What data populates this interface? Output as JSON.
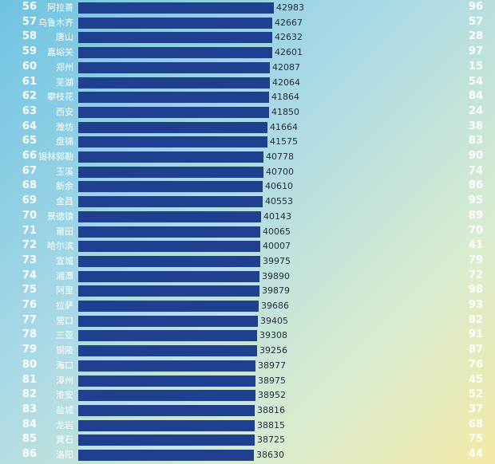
{
  "chart_data": {
    "type": "bar",
    "orientation": "horizontal",
    "rows": [
      {
        "rank": "56",
        "city": "阿拉善",
        "value": 42983,
        "right": "96"
      },
      {
        "rank": "57",
        "city": "乌鲁木齐",
        "value": 42667,
        "right": "57"
      },
      {
        "rank": "58",
        "city": "唐山",
        "value": 42632,
        "right": "28"
      },
      {
        "rank": "59",
        "city": "嘉峪关",
        "value": 42601,
        "right": "97"
      },
      {
        "rank": "60",
        "city": "郑州",
        "value": 42087,
        "right": "15"
      },
      {
        "rank": "61",
        "city": "芜湖",
        "value": 42064,
        "right": "54"
      },
      {
        "rank": "62",
        "city": "攀枝花",
        "value": 41864,
        "right": "84"
      },
      {
        "rank": "63",
        "city": "西安",
        "value": 41850,
        "right": "24"
      },
      {
        "rank": "64",
        "city": "潍坊",
        "value": 41664,
        "right": "38"
      },
      {
        "rank": "65",
        "city": "盘锦",
        "value": 41575,
        "right": "83"
      },
      {
        "rank": "66",
        "city": "锡林郭勒",
        "value": 40778,
        "right": "90"
      },
      {
        "rank": "67",
        "city": "玉溪",
        "value": 40700,
        "right": "74"
      },
      {
        "rank": "68",
        "city": "新余",
        "value": 40610,
        "right": "86"
      },
      {
        "rank": "69",
        "city": "金昌",
        "value": 40553,
        "right": "95"
      },
      {
        "rank": "70",
        "city": "景德镇",
        "value": 40143,
        "right": "89"
      },
      {
        "rank": "71",
        "city": "莆田",
        "value": 40065,
        "right": "70"
      },
      {
        "rank": "72",
        "city": "哈尔滨",
        "value": 40007,
        "right": "41"
      },
      {
        "rank": "73",
        "city": "宣城",
        "value": 39975,
        "right": "79"
      },
      {
        "rank": "74",
        "city": "湘潭",
        "value": 39890,
        "right": "72"
      },
      {
        "rank": "75",
        "city": "阿里",
        "value": 39879,
        "right": "98"
      },
      {
        "rank": "76",
        "city": "拉萨",
        "value": 39686,
        "right": "93"
      },
      {
        "rank": "77",
        "city": "营口",
        "value": 39405,
        "right": "82"
      },
      {
        "rank": "78",
        "city": "三亚",
        "value": 39308,
        "right": "91"
      },
      {
        "rank": "79",
        "city": "铜陵",
        "value": 39256,
        "right": "87"
      },
      {
        "rank": "80",
        "city": "海口",
        "value": 38977,
        "right": "76"
      },
      {
        "rank": "81",
        "city": "漳州",
        "value": 38975,
        "right": "45"
      },
      {
        "rank": "82",
        "city": "淮安",
        "value": 38952,
        "right": "52"
      },
      {
        "rank": "83",
        "city": "盐城",
        "value": 38816,
        "right": "37"
      },
      {
        "rank": "84",
        "city": "龙岩",
        "value": 38815,
        "right": "68"
      },
      {
        "rank": "85",
        "city": "黄石",
        "value": 38725,
        "right": "75"
      },
      {
        "rank": "86",
        "city": "洛阳",
        "value": 38630,
        "right": "44"
      }
    ],
    "colors": {
      "bar": "#1f3f8f",
      "rank_text": "#ffffff",
      "value_text": "#1f2a3a"
    }
  }
}
